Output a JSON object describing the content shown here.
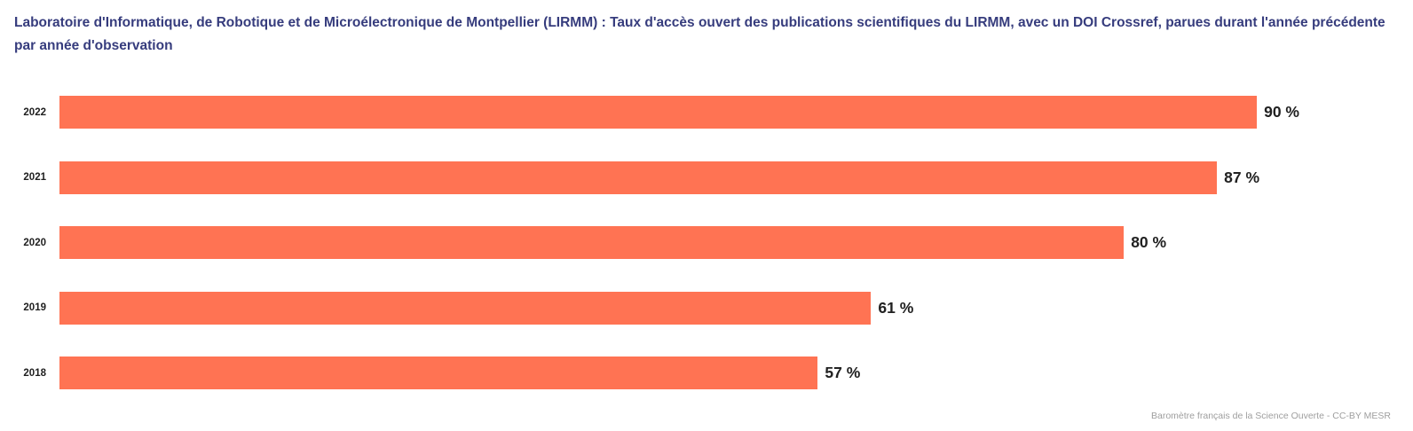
{
  "title": "Laboratoire d'Informatique, de Robotique et de Microélectronique de Montpellier (LIRMM) : Taux d'accès ouvert des publications scientifiques du LIRMM, avec un DOI Crossref, parues durant l'année précédente par année d'observation",
  "footer": "Baromètre français de la Science Ouverte - CC-BY MESR",
  "colors": {
    "bar": "#ff7353",
    "title": "#363c7d",
    "year_label": "#1f1f1f",
    "value_label": "#212121",
    "footer": "#9e9e9e",
    "background": "#ffffff"
  },
  "chart_data": {
    "type": "bar",
    "orientation": "horizontal",
    "title": "Laboratoire d'Informatique, de Robotique et de Microélectronique de Montpellier (LIRMM) : Taux d'accès ouvert des publications scientifiques du LIRMM, avec un DOI Crossref, parues durant l'année précédente par année d'observation",
    "categories": [
      "2022",
      "2021",
      "2020",
      "2019",
      "2018"
    ],
    "values": [
      90,
      87,
      80,
      61,
      57
    ],
    "value_labels": [
      "90 %",
      "87 %",
      "80 %",
      "61 %",
      "57 %"
    ],
    "xlabel": "",
    "ylabel": "",
    "xlim": [
      0,
      100
    ],
    "grid": false,
    "legend": false,
    "annotations": [
      "Baromètre français de la Science Ouverte - CC-BY MESR"
    ]
  }
}
